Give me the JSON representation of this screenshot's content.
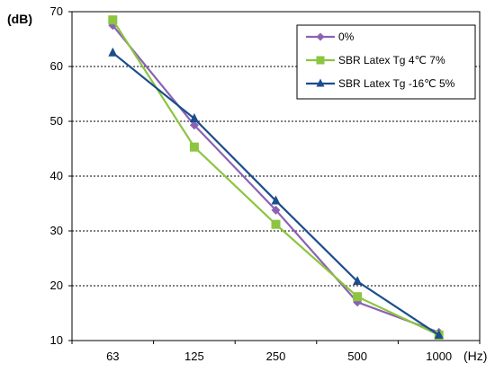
{
  "chart_data": {
    "type": "line",
    "title": "",
    "ylabel": "(dB)",
    "xlabel": "(Hz)",
    "categories": [
      "63",
      "125",
      "250",
      "500",
      "1000"
    ],
    "ylim": [
      10,
      70
    ],
    "yticks": [
      10,
      20,
      30,
      40,
      50,
      60,
      70
    ],
    "grid": "horizontal dashed",
    "legend_position": "top-right",
    "series": [
      {
        "name": "0%",
        "marker": "diamond",
        "color": "#8B62B3",
        "values": [
          67.5,
          49.3,
          33.8,
          17.0,
          11.5
        ]
      },
      {
        "name": "SBR Latex Tg 4℃ 7%",
        "marker": "square",
        "color": "#8CC540",
        "values": [
          68.5,
          45.3,
          31.2,
          18.0,
          11.0
        ]
      },
      {
        "name": "SBR Latex Tg -16℃ 5%",
        "marker": "triangle",
        "color": "#1B4E8C",
        "values": [
          62.5,
          50.5,
          35.5,
          20.8,
          11.0
        ]
      }
    ]
  }
}
